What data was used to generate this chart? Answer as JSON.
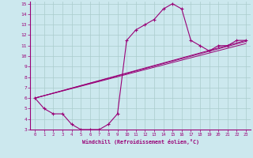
{
  "xlabel": "Windchill (Refroidissement éolien,°C)",
  "bg_color": "#cce8ee",
  "grid_color": "#aacccc",
  "line_color": "#990077",
  "xlim": [
    -0.5,
    23.5
  ],
  "ylim": [
    3,
    15.2
  ],
  "xticks": [
    0,
    1,
    2,
    3,
    4,
    5,
    6,
    7,
    8,
    9,
    10,
    11,
    12,
    13,
    14,
    15,
    16,
    17,
    18,
    19,
    20,
    21,
    22,
    23
  ],
  "yticks": [
    3,
    4,
    5,
    6,
    7,
    8,
    9,
    10,
    11,
    12,
    13,
    14,
    15
  ],
  "line1_x": [
    0,
    1,
    2,
    3,
    4,
    5,
    6,
    7,
    8,
    9,
    10,
    11,
    12,
    13,
    14,
    15,
    16,
    17,
    18,
    19,
    20,
    21,
    22,
    23
  ],
  "line1_y": [
    6.0,
    5.0,
    4.5,
    4.5,
    3.5,
    3.0,
    3.0,
    3.0,
    3.5,
    4.5,
    11.5,
    12.5,
    13.0,
    13.5,
    14.5,
    15.0,
    14.5,
    11.5,
    11.0,
    10.5,
    11.0,
    11.0,
    11.5,
    11.5
  ],
  "line2_x": [
    0,
    23
  ],
  "line2_y": [
    6.0,
    11.5
  ],
  "line3_x": [
    0,
    23
  ],
  "line3_y": [
    6.0,
    11.2
  ],
  "line4_x": [
    0,
    23
  ],
  "line4_y": [
    6.0,
    11.4
  ]
}
